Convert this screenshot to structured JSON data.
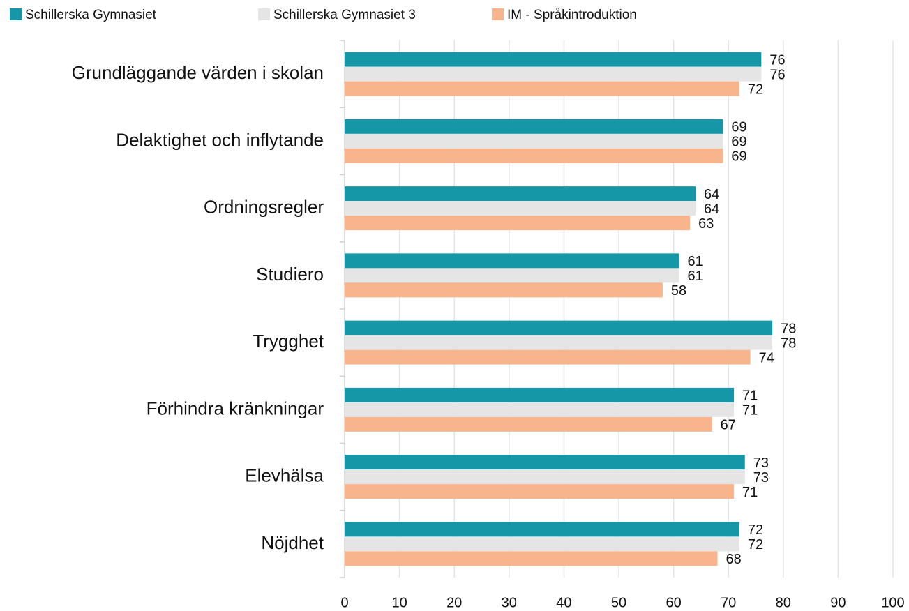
{
  "chart_data": {
    "type": "bar",
    "orientation": "horizontal",
    "categories": [
      "Grundläggande värden i skolan",
      "Delaktighet och inflytande",
      "Ordningsregler",
      "Studiero",
      "Trygghet",
      "Förhindra kränkningar",
      "Elevhälsa",
      "Nöjdhet"
    ],
    "series": [
      {
        "name": "Schillerska Gymnasiet",
        "color": "#1597a8",
        "values": [
          76,
          69,
          64,
          61,
          78,
          71,
          73,
          72
        ]
      },
      {
        "name": "Schillerska Gymnasiet 3",
        "color": "#e5e5e5",
        "values": [
          76,
          69,
          64,
          61,
          78,
          71,
          73,
          72
        ]
      },
      {
        "name": "IM - Språkintroduktion",
        "color": "#f8b48c",
        "values": [
          72,
          69,
          63,
          58,
          74,
          67,
          71,
          68
        ]
      }
    ],
    "xlim": [
      0,
      100
    ],
    "xticks": [
      0,
      10,
      20,
      30,
      40,
      50,
      60,
      70,
      80,
      90,
      100
    ],
    "grid": true,
    "legend": "top-left"
  }
}
